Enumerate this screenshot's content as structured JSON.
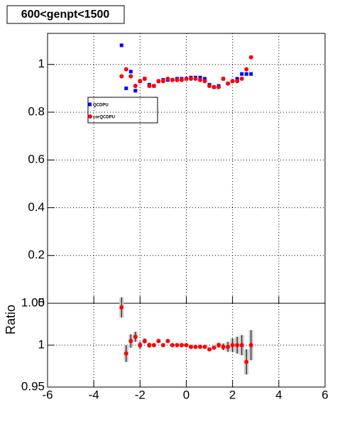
{
  "chart_data": [
    {
      "type": "scatter",
      "title": "600<genpt<1500",
      "x": [
        -2.8,
        -2.6,
        -2.4,
        -2.2,
        -2.0,
        -1.8,
        -1.6,
        -1.4,
        -1.2,
        -1.0,
        -0.8,
        -0.6,
        -0.4,
        -0.2,
        0,
        0.2,
        0.4,
        0.6,
        0.8,
        1.0,
        1.2,
        1.4,
        1.6,
        1.8,
        2.0,
        2.2,
        2.4,
        2.6,
        2.8
      ],
      "series": [
        {
          "name": "QCDPU",
          "color": "#0000ff",
          "values": [
            1.08,
            0.9,
            0.97,
            0.89,
            0.93,
            0.94,
            0.915,
            0.91,
            0.93,
            0.935,
            0.935,
            0.935,
            0.94,
            0.94,
            0.94,
            0.945,
            0.945,
            0.945,
            0.94,
            0.915,
            0.905,
            0.91,
            0.94,
            0.92,
            0.93,
            0.94,
            0.96,
            0.96,
            0.96
          ]
        },
        {
          "name": "corQCDPU",
          "color": "#ff0000",
          "values": [
            0.95,
            0.98,
            0.95,
            0.91,
            0.93,
            0.94,
            0.91,
            0.91,
            0.93,
            0.93,
            0.94,
            0.935,
            0.935,
            0.935,
            0.94,
            0.94,
            0.94,
            0.935,
            0.93,
            0.91,
            0.905,
            0.905,
            0.94,
            0.92,
            0.93,
            0.93,
            0.94,
            0.98,
            1.03
          ]
        }
      ],
      "xlim": [
        -6,
        6
      ],
      "xticks": [
        -6,
        -4,
        -2,
        0,
        2,
        4,
        6
      ],
      "ylim": [
        0,
        1.13
      ],
      "yticks": [
        0,
        0.2,
        0.4,
        0.6,
        0.8,
        1
      ],
      "grid": true
    },
    {
      "type": "ratio",
      "ylabel": "Ratio",
      "x": [
        -2.8,
        -2.6,
        -2.4,
        -2.2,
        -2.0,
        -1.8,
        -1.6,
        -1.4,
        -1.2,
        -1.0,
        -0.8,
        -0.6,
        -0.4,
        -0.2,
        0,
        0.2,
        0.4,
        0.6,
        0.8,
        1.0,
        1.2,
        1.4,
        1.6,
        1.8,
        2.0,
        2.2,
        2.4,
        2.6,
        2.8
      ],
      "color": "#ff0000",
      "values": [
        1.045,
        0.99,
        1.005,
        1.01,
        1.0,
        1.005,
        1.0,
        1.0,
        1.005,
        1.0,
        1.005,
        1.0,
        1.0,
        1.0,
        1.0,
        0.998,
        0.998,
        0.998,
        0.998,
        0.995,
        0.997,
        1.0,
        0.998,
        0.998,
        1.0,
        1.0,
        1.0,
        0.98,
        1.0
      ],
      "errors": [
        0.012,
        0.01,
        0.008,
        0.006,
        0.004,
        0.003,
        0.003,
        0.002,
        0.002,
        0.002,
        0.002,
        0.002,
        0.002,
        0.002,
        0.002,
        0.002,
        0.002,
        0.002,
        0.002,
        0.002,
        0.002,
        0.003,
        0.004,
        0.006,
        0.008,
        0.01,
        0.012,
        0.015,
        0.018
      ],
      "xlim": [
        -6,
        6
      ],
      "xticks": [
        -6,
        -4,
        -2,
        0,
        2,
        4,
        6
      ],
      "ylim": [
        0.95,
        1.05
      ],
      "yticks": [
        0.95,
        1,
        1.05
      ],
      "grid": true
    }
  ]
}
